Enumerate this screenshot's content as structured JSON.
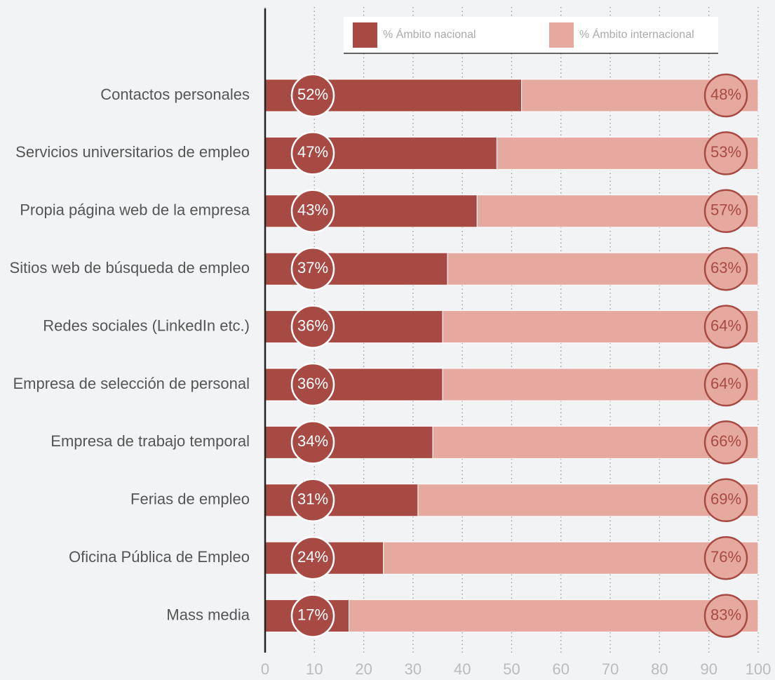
{
  "chart_data": {
    "type": "bar",
    "orientation": "horizontal",
    "stacked": true,
    "categories": [
      "Contactos personales",
      "Servicios universitarios de empleo",
      "Propia página web de la empresa",
      "Sitios web de búsqueda de empleo",
      "Redes sociales (LinkedIn etc.)",
      "Empresa de selección de personal",
      "Empresa de trabajo temporal",
      "Ferias de empleo",
      "Oficina Pública de Empleo",
      "Mass media"
    ],
    "series": [
      {
        "name": "% Ámbito nacional",
        "color": "#a84a44",
        "values": [
          52,
          47,
          43,
          37,
          36,
          36,
          34,
          31,
          24,
          17
        ],
        "value_labels": [
          "52%",
          "47%",
          "43%",
          "37%",
          "36%",
          "36%",
          "34%",
          "31%",
          "24%",
          "17%"
        ]
      },
      {
        "name": "% Ámbito internacional",
        "color": "#e5a99f",
        "values": [
          48,
          53,
          57,
          63,
          64,
          64,
          66,
          69,
          76,
          83
        ],
        "value_labels": [
          "48%",
          "53%",
          "57%",
          "63%",
          "64%",
          "64%",
          "66%",
          "69%",
          "76%",
          "83%"
        ]
      }
    ],
    "xlim": [
      0,
      100
    ],
    "xticks": [
      0,
      10,
      20,
      30,
      40,
      50,
      60,
      70,
      80,
      90,
      100
    ],
    "grid": true,
    "legend": "top"
  }
}
